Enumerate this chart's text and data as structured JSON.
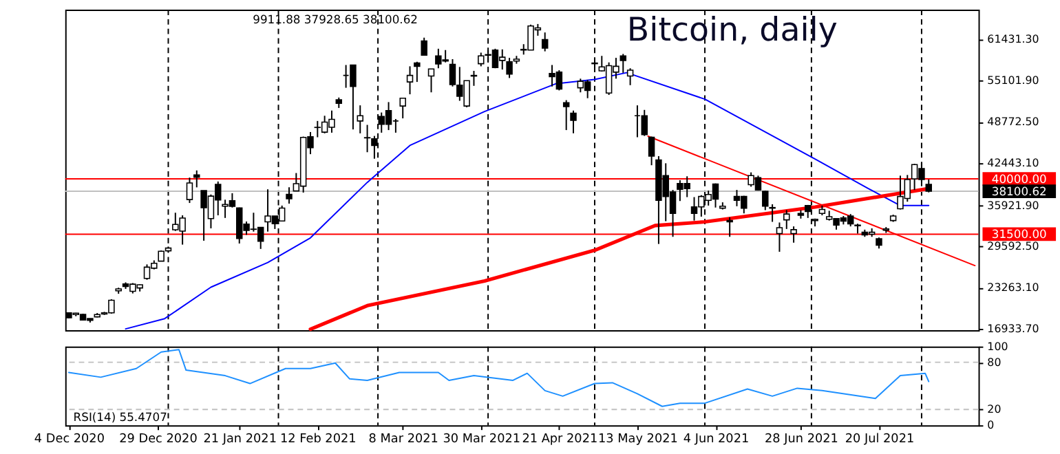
{
  "chart_data": [
    {
      "type": "candlestick",
      "title": "Bitcoin, daily",
      "annotations": [
        "9911.88 37928.65 38100.62"
      ],
      "x": [
        "2020-12-04",
        "2020-12-06",
        "2020-12-08",
        "2020-12-10",
        "2020-12-12",
        "2020-12-14",
        "2020-12-16",
        "2020-12-18",
        "2020-12-20",
        "2020-12-22",
        "2020-12-24",
        "2020-12-26",
        "2020-12-28",
        "2020-12-30",
        "2021-01-01",
        "2021-01-03",
        "2021-01-05",
        "2021-01-07",
        "2021-01-09",
        "2021-01-11",
        "2021-01-13",
        "2021-01-15",
        "2021-01-17",
        "2021-01-19",
        "2021-01-21",
        "2021-01-23",
        "2021-01-25",
        "2021-01-27",
        "2021-01-29",
        "2021-01-31",
        "2021-02-02",
        "2021-02-04",
        "2021-02-06",
        "2021-02-08",
        "2021-02-10",
        "2021-02-12",
        "2021-02-14",
        "2021-02-16",
        "2021-02-18",
        "2021-02-20",
        "2021-02-22",
        "2021-02-24",
        "2021-02-26",
        "2021-02-28",
        "2021-03-02",
        "2021-03-04",
        "2021-03-06",
        "2021-03-08",
        "2021-03-10",
        "2021-03-12",
        "2021-03-14",
        "2021-03-16",
        "2021-03-18",
        "2021-03-20",
        "2021-03-22",
        "2021-03-24",
        "2021-03-26",
        "2021-03-28",
        "2021-03-30",
        "2021-04-01",
        "2021-04-03",
        "2021-04-05",
        "2021-04-07",
        "2021-04-09",
        "2021-04-11",
        "2021-04-13",
        "2021-04-15",
        "2021-04-17",
        "2021-04-19",
        "2021-04-21",
        "2021-04-23",
        "2021-04-25",
        "2021-04-27",
        "2021-04-29",
        "2021-05-01",
        "2021-05-03",
        "2021-05-05",
        "2021-05-07",
        "2021-05-09",
        "2021-05-11",
        "2021-05-13",
        "2021-05-15",
        "2021-05-17",
        "2021-05-19",
        "2021-05-21",
        "2021-05-23",
        "2021-05-25",
        "2021-05-27",
        "2021-05-29",
        "2021-05-31",
        "2021-06-02",
        "2021-06-04",
        "2021-06-06",
        "2021-06-08",
        "2021-06-10",
        "2021-06-12",
        "2021-06-14",
        "2021-06-16",
        "2021-06-18",
        "2021-06-20",
        "2021-06-22",
        "2021-06-24",
        "2021-06-26",
        "2021-06-28",
        "2021-06-30",
        "2021-07-02",
        "2021-07-04",
        "2021-07-06",
        "2021-07-08",
        "2021-07-10",
        "2021-07-12",
        "2021-07-14",
        "2021-07-16",
        "2021-07-18",
        "2021-07-20",
        "2021-07-22",
        "2021-07-24",
        "2021-07-26",
        "2021-07-28",
        "2021-07-30",
        "2021-08-01",
        "2021-08-03"
      ],
      "ohlc": [
        [
          19420,
          19500,
          18600,
          18650
        ],
        [
          19150,
          19420,
          18900,
          19360
        ],
        [
          19180,
          19280,
          18250,
          18320
        ],
        [
          18540,
          18560,
          17930,
          18250
        ],
        [
          18800,
          19390,
          18720,
          19160
        ],
        [
          19240,
          19570,
          19100,
          19420
        ],
        [
          19430,
          21500,
          19300,
          21350
        ],
        [
          22800,
          23280,
          22350,
          23100
        ],
        [
          23850,
          24100,
          23100,
          23480
        ],
        [
          22720,
          23990,
          22400,
          23820
        ],
        [
          23240,
          23790,
          22700,
          23730
        ],
        [
          24700,
          26860,
          24500,
          26440
        ],
        [
          26280,
          27480,
          26100,
          27030
        ],
        [
          27360,
          28990,
          27320,
          28880
        ],
        [
          28950,
          29600,
          28800,
          29370
        ],
        [
          32180,
          34800,
          32000,
          33000
        ],
        [
          31980,
          34400,
          29900,
          33980
        ],
        [
          36820,
          40200,
          36300,
          39370
        ],
        [
          40600,
          41300,
          38700,
          40250
        ],
        [
          38200,
          38200,
          30500,
          35560
        ],
        [
          33910,
          37600,
          32400,
          37350
        ],
        [
          39150,
          39600,
          34400,
          36770
        ],
        [
          35800,
          36800,
          34000,
          36070
        ],
        [
          36640,
          37800,
          35600,
          35790
        ],
        [
          35530,
          35600,
          30070,
          30830
        ],
        [
          33050,
          33450,
          31400,
          32080
        ],
        [
          32280,
          34800,
          31900,
          32250
        ],
        [
          32540,
          32600,
          29240,
          30430
        ],
        [
          33400,
          38400,
          31900,
          34300
        ],
        [
          34300,
          34300,
          32300,
          33110
        ],
        [
          33530,
          35900,
          33450,
          35510
        ],
        [
          37620,
          38700,
          36200,
          36950
        ],
        [
          38140,
          40900,
          38100,
          39270
        ],
        [
          38880,
          46500,
          37900,
          46370
        ],
        [
          46470,
          47200,
          43800,
          44800
        ],
        [
          47920,
          48900,
          46400,
          47900
        ],
        [
          47180,
          49700,
          47000,
          48720
        ],
        [
          47940,
          50500,
          47100,
          49150
        ],
        [
          52150,
          52500,
          50900,
          51600
        ],
        [
          55900,
          57500,
          54000,
          55900
        ],
        [
          57500,
          57500,
          47600,
          54200
        ],
        [
          48900,
          51300,
          47000,
          49700
        ],
        [
          46300,
          48300,
          44100,
          46340
        ],
        [
          46150,
          46600,
          43100,
          45140
        ],
        [
          49600,
          50200,
          47100,
          48400
        ],
        [
          50500,
          51800,
          47500,
          48400
        ],
        [
          48900,
          49200,
          47100,
          48900
        ],
        [
          51200,
          52400,
          49300,
          52400
        ],
        [
          54900,
          57300,
          53000,
          55900
        ],
        [
          57800,
          58000,
          54900,
          57300
        ],
        [
          61200,
          61700,
          59000,
          59000
        ],
        [
          55800,
          56900,
          53300,
          56900
        ],
        [
          58900,
          60000,
          57000,
          57650
        ],
        [
          58300,
          59800,
          57900,
          58100
        ],
        [
          57600,
          58400,
          54200,
          54500
        ],
        [
          54400,
          57200,
          52000,
          52700
        ],
        [
          51200,
          55100,
          51000,
          55100
        ],
        [
          55900,
          56600,
          54300,
          55800
        ],
        [
          57700,
          59400,
          57300,
          58900
        ],
        [
          59000,
          59800,
          58000,
          59100
        ],
        [
          59800,
          60000,
          57000,
          57100
        ],
        [
          58200,
          59900,
          56800,
          58700
        ],
        [
          58000,
          58600,
          55500,
          56100
        ],
        [
          58100,
          58900,
          57700,
          58400
        ],
        [
          59800,
          60700,
          59100,
          59900
        ],
        [
          59800,
          63700,
          59800,
          63500
        ],
        [
          62900,
          63800,
          62000,
          63200
        ],
        [
          61400,
          62500,
          59600,
          60100
        ],
        [
          56200,
          57500,
          54200,
          55700
        ],
        [
          56400,
          56700,
          53600,
          53800
        ],
        [
          51700,
          52100,
          47500,
          51100
        ],
        [
          50100,
          50500,
          47000,
          49000
        ],
        [
          54000,
          55400,
          53300,
          55000
        ],
        [
          54900,
          55200,
          52400,
          53600
        ],
        [
          57700,
          58400,
          57100,
          57800
        ],
        [
          56600,
          58900,
          56500,
          57200
        ],
        [
          53200,
          57900,
          52900,
          57400
        ],
        [
          56400,
          58600,
          55400,
          57300
        ],
        [
          58900,
          59200,
          56300,
          58200
        ],
        [
          55800,
          57000,
          54400,
          56700
        ],
        [
          49700,
          51300,
          46400,
          49700
        ],
        [
          49700,
          50600,
          46600,
          46800
        ],
        [
          46400,
          46500,
          42100,
          43500
        ],
        [
          42900,
          43500,
          30000,
          36700
        ],
        [
          40500,
          42400,
          33500,
          37300
        ],
        [
          38000,
          38300,
          31100,
          34700
        ],
        [
          39300,
          39800,
          36600,
          38400
        ],
        [
          39300,
          40400,
          37200,
          38500
        ],
        [
          35700,
          37200,
          33600,
          34700
        ],
        [
          35700,
          37500,
          34200,
          37300
        ],
        [
          36700,
          38200,
          35900,
          37600
        ],
        [
          39200,
          39300,
          35600,
          36900
        ],
        [
          35500,
          36400,
          35300,
          35800
        ],
        [
          33600,
          34100,
          31100,
          33400
        ],
        [
          37300,
          38300,
          35800,
          36700
        ],
        [
          37300,
          37400,
          34700,
          35500
        ],
        [
          39100,
          41000,
          38800,
          40500
        ],
        [
          40200,
          40500,
          38200,
          38300
        ],
        [
          38100,
          38200,
          35200,
          35800
        ],
        [
          35500,
          36100,
          33400,
          35600
        ],
        [
          31600,
          33300,
          28800,
          32500
        ],
        [
          33700,
          35200,
          32300,
          34600
        ],
        [
          31600,
          32700,
          30200,
          32200
        ],
        [
          34700,
          35200,
          33900,
          34400
        ],
        [
          35900,
          36000,
          34000,
          35000
        ],
        [
          33600,
          33900,
          32700,
          33800
        ],
        [
          34700,
          35900,
          34400,
          35300
        ],
        [
          33800,
          35100,
          33600,
          34200
        ],
        [
          33900,
          33900,
          32200,
          32900
        ],
        [
          34000,
          34300,
          33000,
          33500
        ],
        [
          34300,
          34600,
          32700,
          33100
        ],
        [
          32800,
          33100,
          31600,
          32900
        ],
        [
          31800,
          32200,
          31100,
          31400
        ],
        [
          31500,
          32400,
          31100,
          31800
        ],
        [
          30800,
          31000,
          29300,
          29800
        ],
        [
          32100,
          32600,
          31700,
          32300
        ],
        [
          33600,
          34500,
          33400,
          34300
        ],
        [
          35400,
          40500,
          35300,
          37300
        ],
        [
          37000,
          40600,
          36500,
          39900
        ],
        [
          40000,
          42300,
          38300,
          42200
        ],
        [
          41600,
          42500,
          39500,
          39900
        ],
        [
          39150,
          39911.88,
          37928.65,
          38100.62
        ]
      ],
      "series": [
        {
          "type": "line",
          "color": "#0000ff",
          "x": [
            "2020-12-20",
            "2020-12-31",
            "2021-01-13",
            "2021-01-29",
            "2021-02-10",
            "2021-02-26",
            "2021-03-10",
            "2021-03-31",
            "2021-04-20",
            "2021-05-01",
            "2021-05-10",
            "2021-06-01",
            "2021-07-02",
            "2021-07-17",
            "2021-07-26",
            "2021-08-03"
          ],
          "values": [
            16950,
            18530,
            23360,
            27150,
            30940,
            39460,
            45140,
            50350,
            54610,
            55280,
            56320,
            52250,
            43060,
            38510,
            35900,
            35900
          ]
        },
        {
          "type": "line",
          "color": "#ff0000",
          "x": [
            "2021-02-10",
            "2021-02-26",
            "2021-03-31",
            "2021-05-01",
            "2021-05-18",
            "2021-06-01",
            "2021-07-02",
            "2021-08-03"
          ],
          "values": [
            16900,
            20520,
            24310,
            29040,
            32830,
            33400,
            35670,
            38510
          ]
        },
        {
          "type": "line",
          "color": "#ff0000",
          "x": [
            "2021-05-16",
            "2021-08-16"
          ],
          "values": [
            46560,
            26680
          ]
        }
      ],
      "xlim": [
        "2020-12-03",
        "2021-08-17"
      ],
      "ylim": [
        16750,
        66000
      ],
      "yticks": [
        {
          "value": 16933.7,
          "label": "16933.70"
        },
        {
          "value": 23263.1,
          "label": "23263.10"
        },
        {
          "value": 29592.5,
          "label": "29592.50"
        },
        {
          "value": 35921.9,
          "label": "35921.90"
        },
        {
          "value": 42443.1,
          "label": "42443.10"
        },
        {
          "value": 48772.5,
          "label": "48772.50"
        },
        {
          "value": 55101.9,
          "label": "55101.90"
        },
        {
          "value": 61431.3,
          "label": "61431.30"
        }
      ],
      "ref_lines": [
        {
          "axis": "x",
          "value": "2021-01-01",
          "color": "#000000",
          "line_style": "dashed"
        },
        {
          "axis": "x",
          "value": "2021-02-01",
          "color": "#000000",
          "line_style": "dashed"
        },
        {
          "axis": "x",
          "value": "2021-03-01",
          "color": "#000000",
          "line_style": "dashed"
        },
        {
          "axis": "x",
          "value": "2021-04-01",
          "color": "#000000",
          "line_style": "dashed"
        },
        {
          "axis": "x",
          "value": "2021-05-01",
          "color": "#000000",
          "line_style": "dashed"
        },
        {
          "axis": "x",
          "value": "2021-06-01",
          "color": "#000000",
          "line_style": "dashed"
        },
        {
          "axis": "x",
          "value": "2021-07-01",
          "color": "#000000",
          "line_style": "dashed"
        },
        {
          "axis": "x",
          "value": "2021-08-01",
          "color": "#000000",
          "line_style": "dashed"
        },
        {
          "axis": "y",
          "value": 40000,
          "label": "40000.00",
          "color": "#ff0000",
          "line_style": "solid"
        },
        {
          "axis": "y",
          "value": 38100.62,
          "label": "38100.62",
          "color": "#c0c0c0",
          "line_style": "solid"
        },
        {
          "axis": "y",
          "value": 31500,
          "label": "31500.00",
          "color": "#ff0000",
          "line_style": "solid"
        }
      ],
      "tick_labels": "y"
    },
    {
      "type": "line",
      "annotations": [
        "RSI(14) 55.4707"
      ],
      "series": [
        {
          "color": "#1e90ff",
          "x": [
            "2020-12-04",
            "2020-12-13",
            "2020-12-23",
            "2020-12-30",
            "2021-01-04",
            "2021-01-06",
            "2021-01-17",
            "2021-01-24",
            "2021-02-03",
            "2021-02-10",
            "2021-02-17",
            "2021-02-21",
            "2021-02-26",
            "2021-03-07",
            "2021-03-18",
            "2021-03-21",
            "2021-03-28",
            "2021-04-08",
            "2021-04-12",
            "2021-04-17",
            "2021-04-22",
            "2021-05-01",
            "2021-05-06",
            "2021-05-13",
            "2021-05-20",
            "2021-05-25",
            "2021-06-01",
            "2021-06-13",
            "2021-06-20",
            "2021-06-27",
            "2021-07-04",
            "2021-07-19",
            "2021-07-26",
            "2021-08-02",
            "2021-08-03"
          ],
          "values": [
            67,
            61,
            72,
            93,
            96,
            70,
            63,
            53,
            72,
            72,
            79,
            59,
            57,
            67,
            67,
            57,
            63,
            57,
            66,
            44,
            37,
            53,
            54,
            40,
            24,
            28,
            28,
            46,
            37,
            47,
            44,
            34,
            63,
            66,
            55.4707
          ]
        }
      ],
      "xlim": [
        "2020-12-03",
        "2021-08-17"
      ],
      "xticks": [
        {
          "value": "2020-12-04",
          "label": "4 Dec 2020"
        },
        {
          "value": "2020-12-29",
          "label": "29 Dec 2020"
        },
        {
          "value": "2021-01-21",
          "label": "21 Jan 2021"
        },
        {
          "value": "2021-02-12",
          "label": "12 Feb 2021"
        },
        {
          "value": "2021-03-08",
          "label": "8 Mar 2021"
        },
        {
          "value": "2021-03-30",
          "label": "30 Mar 2021"
        },
        {
          "value": "2021-04-21",
          "label": "21 Apr 2021"
        },
        {
          "value": "2021-05-13",
          "label": "13 May 2021"
        },
        {
          "value": "2021-06-04",
          "label": "4 Jun 2021"
        },
        {
          "value": "2021-06-28",
          "label": "28 Jun 2021"
        },
        {
          "value": "2021-07-20",
          "label": "20 Jul 2021"
        }
      ],
      "ylim": [
        0,
        100
      ],
      "yticks": [
        0,
        20,
        80,
        100
      ],
      "ref_lines": [
        {
          "axis": "x",
          "value": "2021-01-01",
          "color": "#000000",
          "line_style": "dashed"
        },
        {
          "axis": "x",
          "value": "2021-02-01",
          "color": "#000000",
          "line_style": "dashed"
        },
        {
          "axis": "x",
          "value": "2021-03-01",
          "color": "#000000",
          "line_style": "dashed"
        },
        {
          "axis": "x",
          "value": "2021-04-01",
          "color": "#000000",
          "line_style": "dashed"
        },
        {
          "axis": "x",
          "value": "2021-05-01",
          "color": "#000000",
          "line_style": "dashed"
        },
        {
          "axis": "x",
          "value": "2021-06-01",
          "color": "#000000",
          "line_style": "dashed"
        },
        {
          "axis": "x",
          "value": "2021-07-01",
          "color": "#000000",
          "line_style": "dashed"
        },
        {
          "axis": "x",
          "value": "2021-08-01",
          "color": "#000000",
          "line_style": "dashed"
        },
        {
          "axis": "y",
          "value": 20,
          "color": "#c0c0c0",
          "line_style": "dashed"
        },
        {
          "axis": "y",
          "value": 80,
          "color": "#c0c0c0",
          "line_style": "dashed"
        }
      ]
    }
  ]
}
